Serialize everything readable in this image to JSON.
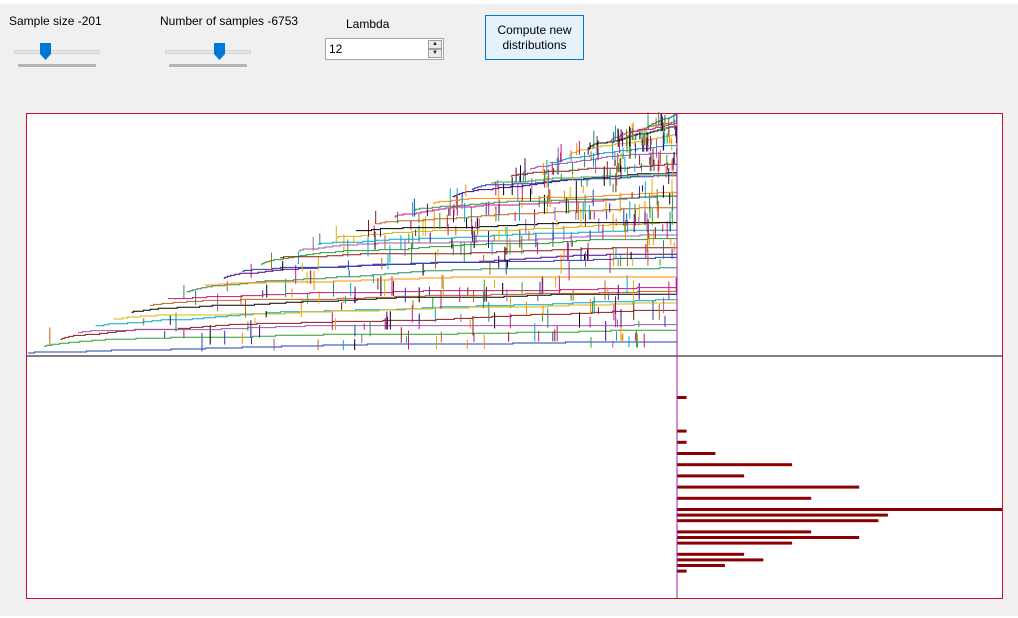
{
  "controls": {
    "sample_size_label": "Sample size -201",
    "sample_size_slider": 0.35,
    "num_samples_label": "Number of samples -6753",
    "num_samples_slider": 0.65,
    "lambda_label": "Lambda",
    "lambda_value": "12",
    "compute_button_label": "Compute new distributions"
  },
  "colors": {
    "frame": "#c8102e",
    "divider_vertical": "#a020a0",
    "divider_horizontal": "#000000",
    "histogram_bar": "#8b0000",
    "line_palette": [
      "#1f3fb5",
      "#2ca02c",
      "#8b1a1a",
      "#9b59b6",
      "#00a8c8",
      "#d4b400",
      "#000000",
      "#b5651d",
      "#c71585",
      "#2e8b57",
      "#ff8c00",
      "#4b0082"
    ]
  },
  "chart_data": {
    "type": "bar",
    "orientation": "horizontal",
    "values": [
      1,
      0,
      0,
      0,
      0,
      0,
      1,
      0,
      1,
      0,
      4,
      0,
      12,
      0,
      7,
      0,
      19,
      0,
      14,
      0,
      34,
      22,
      21,
      0,
      14,
      19,
      12,
      0,
      7,
      9,
      5,
      1
    ]
  }
}
